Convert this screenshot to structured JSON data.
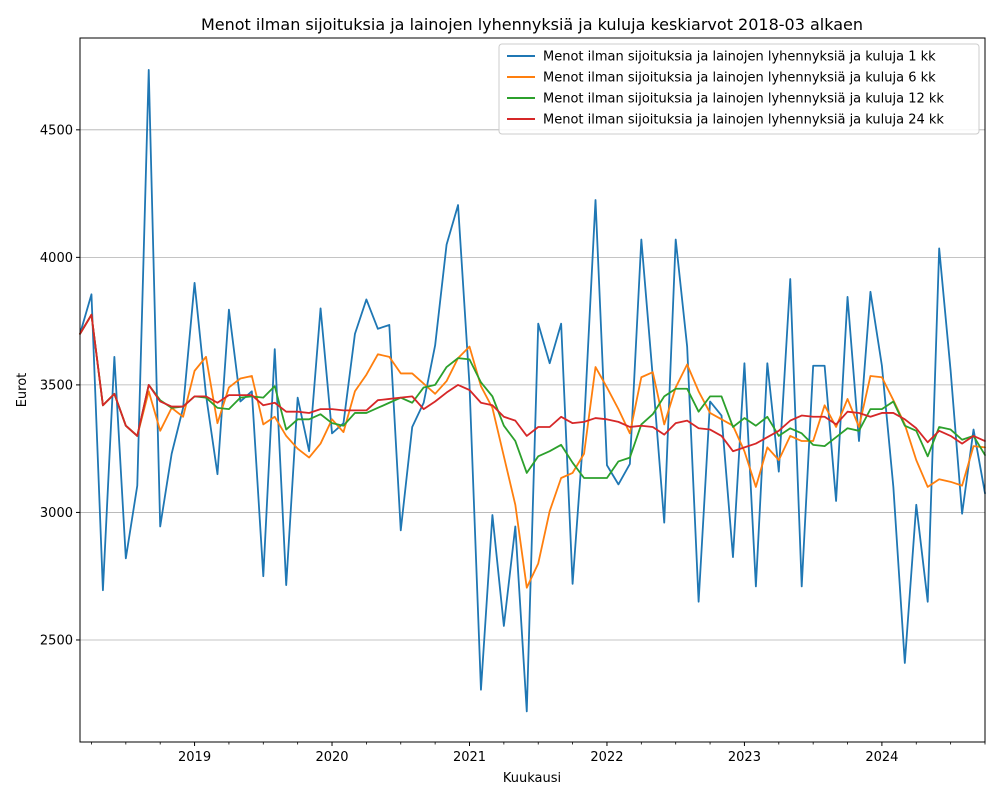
{
  "chart_data": {
    "type": "line",
    "title": "Menot ilman sijoituksia ja lainojen lyhennyksiä ja kuluja keskiarvot 2018-03 alkaen",
    "xlabel": "Kuukausi",
    "ylabel": "Eurot",
    "x_start": "2018-03",
    "x_end": "2024-10",
    "xlim": [
      "2018-03",
      "2024-10"
    ],
    "ylim": [
      2100,
      4860
    ],
    "yticks": [
      2500,
      3000,
      3500,
      4000,
      4500
    ],
    "ytick_labels": [
      "2500",
      "3000",
      "3500",
      "4000",
      "4500"
    ],
    "xticks": [
      "2019-01",
      "2020-01",
      "2021-01",
      "2022-01",
      "2023-01",
      "2024-01"
    ],
    "xtick_labels": [
      "2019",
      "2020",
      "2021",
      "2022",
      "2023",
      "2024"
    ],
    "grid": "y-axis only",
    "legend_position": "top-right",
    "series": [
      {
        "name": "Menot ilman sijoituksia ja lainojen lyhennyksiä ja kuluja 1 kk",
        "color": "#1f77b4",
        "values": [
          3700,
          3855,
          2695,
          3610,
          2820,
          3105,
          4735,
          2945,
          3230,
          3410,
          3900,
          3460,
          3150,
          3795,
          3435,
          3475,
          2750,
          3640,
          2715,
          3450,
          3240,
          3800,
          3310,
          3350,
          3700,
          3835,
          3720,
          3735,
          2930,
          3335,
          3430,
          3655,
          4050,
          4205,
          3500,
          2305,
          2990,
          2555,
          2945,
          2220,
          3740,
          3585,
          3740,
          2720,
          3340,
          4225,
          3185,
          3110,
          3190,
          4070,
          3530,
          2960,
          4070,
          3650,
          2650,
          3435,
          3380,
          2825,
          3585,
          2710,
          3585,
          3160,
          3915,
          2710,
          3575,
          3575,
          3045,
          3845,
          3280,
          3865,
          3575,
          3100,
          2410,
          3030,
          2650,
          4035,
          3555,
          2995,
          3325,
          3075
        ]
      },
      {
        "name": "Menot ilman sijoituksia ja lainojen lyhennyksiä ja kuluja 6 kk",
        "color": "#ff7f0e",
        "values": [
          3700,
          3775,
          3420,
          3465,
          3340,
          3300,
          3475,
          3320,
          3410,
          3375,
          3555,
          3610,
          3350,
          3490,
          3525,
          3535,
          3345,
          3375,
          3300,
          3250,
          3215,
          3270,
          3365,
          3315,
          3475,
          3540,
          3620,
          3610,
          3545,
          3545,
          3505,
          3465,
          3515,
          3605,
          3650,
          3495,
          3410,
          3220,
          3030,
          2705,
          2800,
          3005,
          3135,
          3155,
          3230,
          3570,
          3490,
          3405,
          3310,
          3530,
          3550,
          3345,
          3490,
          3580,
          3475,
          3390,
          3365,
          3340,
          3240,
          3100,
          3255,
          3205,
          3300,
          3280,
          3280,
          3420,
          3335,
          3445,
          3335,
          3535,
          3530,
          3440,
          3345,
          3205,
          3100,
          3130,
          3120,
          3105,
          3260,
          3255
        ]
      },
      {
        "name": "Menot ilman sijoituksia ja lainojen lyhennyksiä ja kuluja 12 kk",
        "color": "#2ca02c",
        "values": [
          3700,
          3775,
          3420,
          3465,
          3340,
          3300,
          3500,
          3440,
          3410,
          3415,
          3455,
          3450,
          3410,
          3405,
          3450,
          3455,
          3450,
          3495,
          3325,
          3365,
          3365,
          3385,
          3350,
          3340,
          3390,
          3390,
          3410,
          3430,
          3450,
          3430,
          3490,
          3500,
          3570,
          3605,
          3600,
          3510,
          3455,
          3340,
          3280,
          3155,
          3220,
          3240,
          3265,
          3195,
          3135,
          3135,
          3135,
          3200,
          3215,
          3345,
          3385,
          3455,
          3485,
          3485,
          3395,
          3455,
          3455,
          3335,
          3370,
          3340,
          3375,
          3300,
          3330,
          3310,
          3265,
          3260,
          3295,
          3330,
          3320,
          3405,
          3405,
          3435,
          3340,
          3320,
          3220,
          3335,
          3325,
          3285,
          3300,
          3225
        ]
      },
      {
        "name": "Menot ilman sijoituksia ja lainojen lyhennyksiä ja kuluja 24 kk",
        "color": "#d62728",
        "values": [
          3700,
          3775,
          3420,
          3465,
          3340,
          3300,
          3500,
          3435,
          3415,
          3415,
          3455,
          3455,
          3430,
          3460,
          3460,
          3460,
          3420,
          3430,
          3395,
          3395,
          3390,
          3405,
          3405,
          3400,
          3400,
          3400,
          3440,
          3445,
          3450,
          3455,
          3405,
          3435,
          3470,
          3500,
          3480,
          3430,
          3420,
          3375,
          3360,
          3300,
          3335,
          3335,
          3375,
          3350,
          3355,
          3370,
          3365,
          3355,
          3335,
          3340,
          3335,
          3305,
          3350,
          3360,
          3330,
          3325,
          3300,
          3240,
          3255,
          3270,
          3295,
          3320,
          3360,
          3380,
          3375,
          3375,
          3345,
          3395,
          3390,
          3375,
          3390,
          3390,
          3365,
          3330,
          3275,
          3320,
          3300,
          3270,
          3300,
          3280
        ]
      }
    ]
  }
}
